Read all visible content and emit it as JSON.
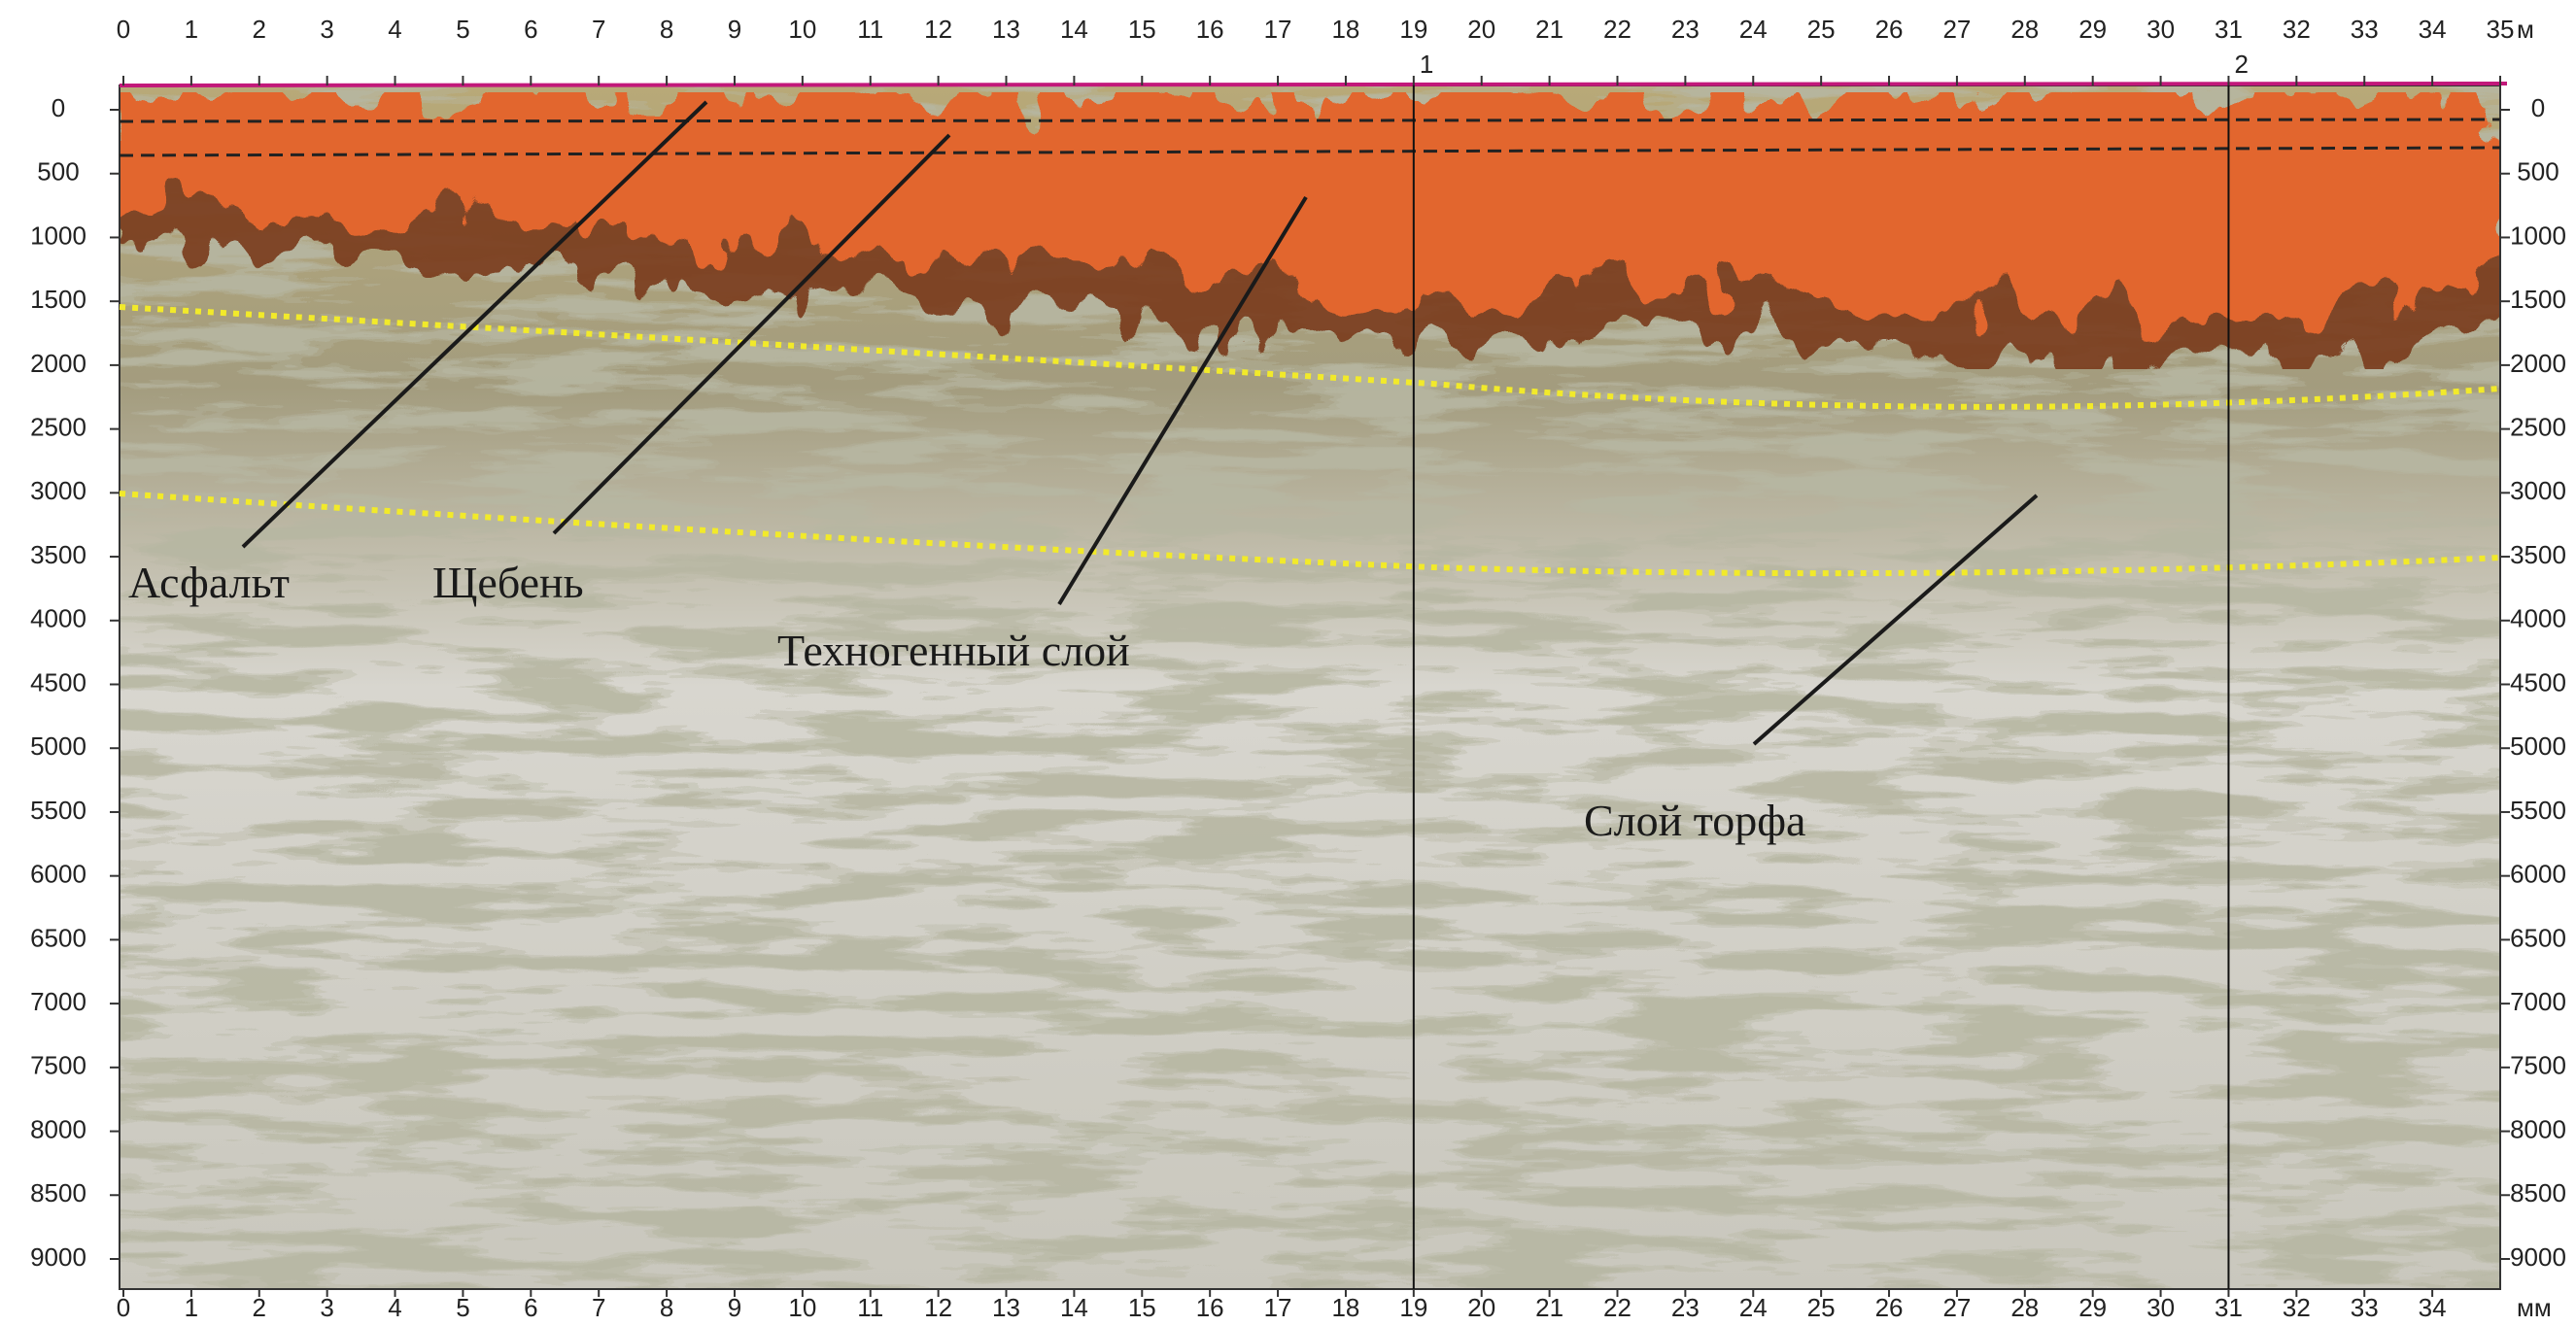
{
  "x_axis": {
    "ticks": [
      0,
      1,
      2,
      3,
      4,
      5,
      6,
      7,
      8,
      9,
      10,
      11,
      12,
      13,
      14,
      15,
      16,
      17,
      18,
      19,
      20,
      21,
      22,
      23,
      24,
      25,
      26,
      27,
      28,
      29,
      30,
      31,
      32,
      33,
      34,
      35
    ],
    "unit_top": "м",
    "unit_bottom": "мм"
  },
  "depth_axis": {
    "ticks": [
      0,
      500,
      1000,
      1500,
      2000,
      2500,
      3000,
      3500,
      4000,
      4500,
      5000,
      5500,
      6000,
      6500,
      7000,
      7500,
      8000,
      8500,
      9000
    ]
  },
  "markers": [
    {
      "label": "1",
      "x": 19
    },
    {
      "label": "2",
      "x": 31
    }
  ],
  "annotations": [
    "Асфальт",
    "Щебень",
    "Техногенный слой",
    "Слой торфа"
  ]
}
